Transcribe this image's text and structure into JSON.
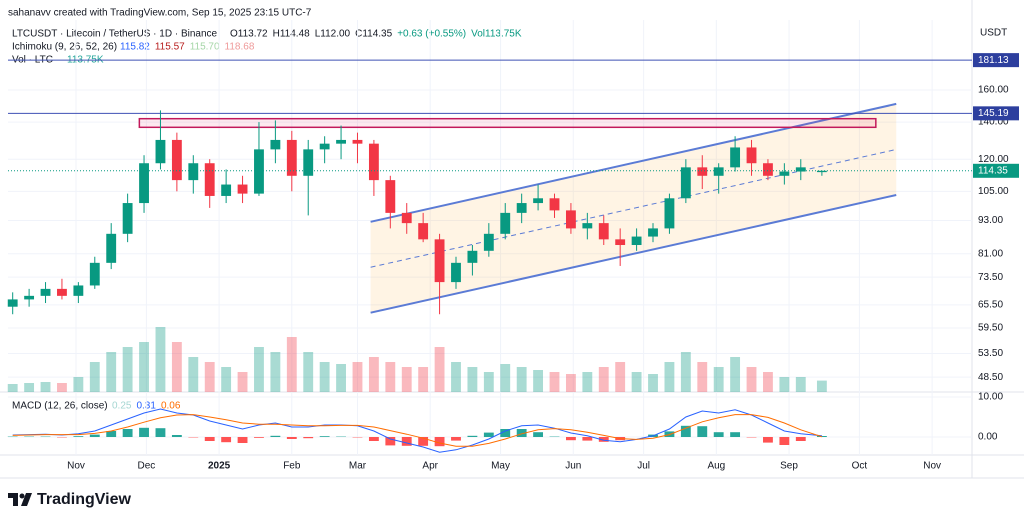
{
  "header": {
    "credit": "sahanavv created with TradingView.com, Sep 15, 2025 23:15 UTC-7",
    "symbol": "LTCUSDT · Litecoin / TetherUS · 1D · Binance",
    "ohlc": [
      "O113.72",
      "H114.48",
      "L112.00",
      "C114.35",
      "+0.63 (+0.55%)",
      "Vol113.75K"
    ],
    "ichimoku": {
      "label": "Ichimoku (9, 26, 52, 26)",
      "values": [
        "115.82",
        "115.57",
        "115.70",
        "118.68"
      ]
    },
    "volume": {
      "label": "Vol · LTC",
      "value": "113.75K"
    }
  },
  "chart_data": {
    "type": "candlestick",
    "currency": "USDT",
    "log_scale": true,
    "up_color": "#089981",
    "down_color": "#f23645",
    "x": [
      2,
      9,
      16,
      23,
      30,
      37,
      44,
      51,
      58,
      65,
      72,
      79,
      86,
      93,
      100,
      107,
      114,
      121,
      128,
      135,
      142,
      149,
      156,
      163,
      170,
      177,
      184,
      191,
      198,
      205,
      212,
      219,
      226,
      233,
      240,
      247,
      254,
      261,
      268,
      275,
      282,
      289,
      296,
      303,
      310,
      317,
      324,
      331,
      338,
      347
    ],
    "open": [
      65,
      67,
      68,
      70,
      68,
      71,
      78,
      88,
      100,
      118,
      130,
      110,
      118,
      103,
      108,
      104,
      125,
      130,
      112,
      125,
      128,
      130,
      128,
      110,
      96,
      92,
      86,
      72,
      78,
      82,
      88,
      96,
      100,
      102,
      97,
      90,
      92,
      86,
      84,
      87,
      90,
      102,
      116,
      112,
      116,
      126,
      118,
      112,
      114,
      113.72
    ],
    "high": [
      69,
      70,
      72,
      73,
      72,
      80,
      92,
      104,
      122,
      147,
      134,
      122,
      120,
      115,
      112,
      140,
      141,
      135,
      130,
      132,
      138,
      134,
      130,
      112,
      100,
      96,
      88,
      80,
      84,
      92,
      100,
      104,
      108,
      104,
      100,
      96,
      95,
      90,
      90,
      92,
      104,
      120,
      122,
      118,
      132,
      130,
      120,
      118,
      120,
      114.48
    ],
    "low": [
      63,
      65,
      66,
      67,
      66,
      70,
      76,
      85,
      96,
      115,
      105,
      104,
      98,
      100,
      100,
      103,
      118,
      105,
      95,
      118,
      120,
      118,
      103,
      90,
      88,
      85,
      63,
      70,
      74,
      80,
      86,
      92,
      97,
      94,
      88,
      86,
      84,
      77,
      82,
      85,
      88,
      100,
      106,
      104,
      114,
      112,
      110,
      108,
      110,
      112.0
    ],
    "close": [
      67,
      68,
      70,
      68,
      71,
      78,
      88,
      100,
      118,
      130,
      110,
      118,
      103,
      108,
      104,
      125,
      130,
      112,
      125,
      128,
      130,
      128,
      110,
      96,
      92,
      86,
      72,
      78,
      82,
      88,
      96,
      100,
      102,
      97,
      90,
      92,
      86,
      84,
      87,
      90,
      102,
      116,
      112,
      116,
      126,
      118,
      112,
      114,
      116,
      114.35
    ],
    "volume": [
      80,
      90,
      100,
      90,
      150,
      300,
      400,
      450,
      500,
      650,
      500,
      350,
      300,
      250,
      200,
      450,
      400,
      550,
      400,
      300,
      280,
      300,
      350,
      300,
      250,
      250,
      450,
      300,
      250,
      200,
      280,
      250,
      220,
      200,
      180,
      200,
      250,
      300,
      200,
      180,
      300,
      400,
      300,
      250,
      350,
      250,
      200,
      150,
      150,
      114
    ],
    "volume_lim": [
      0,
      1000
    ],
    "xlim": [
      0,
      411
    ],
    "xticks": [
      {
        "value": 29,
        "label": "Nov"
      },
      {
        "value": 59,
        "label": "Dec"
      },
      {
        "value": 90,
        "label": "2025"
      },
      {
        "value": 121,
        "label": "Feb"
      },
      {
        "value": 149,
        "label": "Mar"
      },
      {
        "value": 180,
        "label": "Apr"
      },
      {
        "value": 210,
        "label": "May"
      },
      {
        "value": 241,
        "label": "Jun"
      },
      {
        "value": 271,
        "label": "Jul"
      },
      {
        "value": 302,
        "label": "Aug"
      },
      {
        "value": 333,
        "label": "Sep"
      },
      {
        "value": 363,
        "label": "Oct"
      },
      {
        "value": 394,
        "label": "Nov"
      }
    ],
    "ylim": [
      45.6,
      214
    ],
    "yticks": [
      {
        "value": 160,
        "label": "160.00"
      },
      {
        "value": 140,
        "label": "140.00"
      },
      {
        "value": 120,
        "label": "120.00"
      },
      {
        "value": 105,
        "label": "105.00"
      },
      {
        "value": 93,
        "label": "93.00"
      },
      {
        "value": 81,
        "label": "81.00"
      },
      {
        "value": 73.5,
        "label": "73.50"
      },
      {
        "value": 65.5,
        "label": "65.50"
      },
      {
        "value": 59.5,
        "label": "59.50"
      },
      {
        "value": 53.5,
        "label": "53.50"
      },
      {
        "value": 48.5,
        "label": "48.50"
      }
    ],
    "price_lines": [
      181.13,
      145.19
    ],
    "channel": {
      "upper": {
        "x": [
          154.6,
          378.7
        ],
        "y": [
          92.5,
          151
        ]
      },
      "lower": {
        "x": [
          154.6,
          378.7
        ],
        "y": [
          63.4,
          103.4
        ]
      }
    },
    "resistance": {
      "x": [
        56,
        370
      ],
      "y": [
        137,
        142
      ]
    },
    "macd": {
      "label": "MACD (12, 26, close)",
      "ylim": [
        -4.5,
        11
      ],
      "yticks": [
        {
          "value": 10,
          "label": "10.00"
        },
        {
          "value": 0,
          "label": "0.00"
        }
      ],
      "histogram": [
        0.1,
        0.1,
        0.1,
        -0.1,
        0.2,
        0.6,
        1.5,
        2,
        2.3,
        2.2,
        0.5,
        -0.1,
        -1,
        -1.3,
        -1.5,
        -0.2,
        0.3,
        -0.5,
        -0.3,
        0.2,
        0.1,
        -0.1,
        -1,
        -2.1,
        -2.2,
        -2.2,
        -2.3,
        -0.9,
        0.3,
        1.1,
        2,
        2,
        1.2,
        0.1,
        -0.8,
        -0.9,
        -1.2,
        -0.8,
        0,
        0.6,
        1.4,
        2.8,
        2.7,
        1.2,
        1.2,
        -0.1,
        -1.4,
        -2,
        -1,
        0.25
      ],
      "macd": [
        0.5,
        0.6,
        0.7,
        0.5,
        0.8,
        1.5,
        3,
        4.5,
        6,
        7,
        6,
        5.5,
        4,
        3,
        2,
        3,
        3.5,
        2.5,
        2.5,
        3,
        3,
        2.8,
        1.5,
        -0.5,
        -1.5,
        -2.5,
        -3.8,
        -3.2,
        -2,
        -0.5,
        1.5,
        2.8,
        3,
        2.2,
        1,
        0.3,
        -0.8,
        -1.2,
        -0.6,
        0.3,
        2,
        5,
        6.5,
        6,
        6.8,
        5.5,
        3.5,
        1.5,
        0.8,
        0.31
      ],
      "signal": [
        0.4,
        0.5,
        0.6,
        0.6,
        0.6,
        0.9,
        1.5,
        2.5,
        3.7,
        4.8,
        5.5,
        5.6,
        5,
        4.3,
        3.5,
        3.2,
        3.2,
        3,
        2.8,
        2.8,
        2.9,
        2.9,
        2.5,
        1.6,
        0.7,
        -0.3,
        -1.5,
        -2.3,
        -2.3,
        -1.6,
        -0.5,
        0.8,
        1.8,
        2.1,
        1.8,
        1.2,
        0.4,
        -0.4,
        -0.6,
        -0.3,
        0.6,
        2.2,
        3.8,
        4.8,
        5.6,
        5.6,
        4.9,
        3.5,
        1.8,
        0.06
      ]
    }
  },
  "footer": {
    "brand": "TradingView"
  }
}
